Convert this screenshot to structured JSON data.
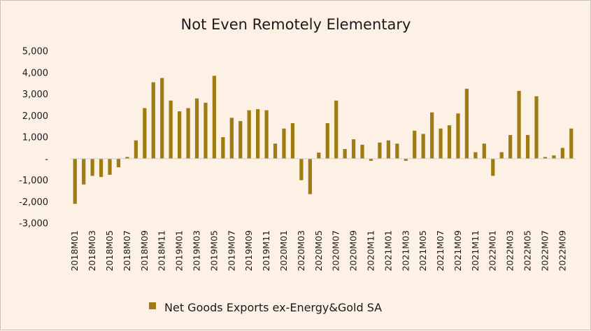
{
  "chart_data": {
    "type": "bar",
    "title": "Not Even Remotely Elementary",
    "xlabel": "",
    "ylabel": "",
    "ylim": [
      -3000,
      5000
    ],
    "yticks": [
      5000,
      4000,
      3000,
      2000,
      1000,
      0,
      -1000,
      -2000,
      -3000
    ],
    "ytick_labels": [
      "5,000",
      "4,000",
      "3,000",
      "2,000",
      "1,000",
      "-",
      "-1,000",
      "-2,000",
      "-3,000"
    ],
    "color": "#9c7c13",
    "grid": false,
    "legend_position": "bottom",
    "categories": [
      "2018M01",
      "2018M02",
      "2018M03",
      "2018M04",
      "2018M05",
      "2018M06",
      "2018M07",
      "2018M08",
      "2018M09",
      "2018M10",
      "2018M11",
      "2018M12",
      "2019M01",
      "2019M02",
      "2019M03",
      "2019M04",
      "2019M05",
      "2019M06",
      "2019M07",
      "2019M08",
      "2019M09",
      "2019M10",
      "2019M11",
      "2019M12",
      "2020M01",
      "2020M02",
      "2020M03",
      "2020M04",
      "2020M05",
      "2020M06",
      "2020M07",
      "2020M08",
      "2020M09",
      "2020M10",
      "2020M11",
      "2020M12",
      "2021M01",
      "2021M02",
      "2021M03",
      "2021M04",
      "2021M05",
      "2021M06",
      "2021M07",
      "2021M08",
      "2021M09",
      "2021M10",
      "2021M11",
      "2021M12",
      "2022M01",
      "2022M02",
      "2022M03",
      "2022M04",
      "2022M05",
      "2022M06",
      "2022M07",
      "2022M08",
      "2022M09",
      "2022M10"
    ],
    "tick_labels_shown": [
      "2018M01",
      "2018M03",
      "2018M05",
      "2018M07",
      "2018M09",
      "2018M11",
      "2019M01",
      "2019M03",
      "2019M05",
      "2019M07",
      "2019M09",
      "2019M11",
      "2020M01",
      "2020M03",
      "2020M05",
      "2020M07",
      "2020M09",
      "2020M11",
      "2021M01",
      "2021M03",
      "2021M05",
      "2021M07",
      "2021M09",
      "2021M11",
      "2022M01",
      "2022M03",
      "2022M05",
      "2022M07",
      "2022M09"
    ],
    "series": [
      {
        "name": "Net Goods Exports ex-Energy&Gold SA",
        "values": [
          -2100,
          -1200,
          -800,
          -850,
          -750,
          -400,
          80,
          850,
          2350,
          3550,
          3750,
          2700,
          2200,
          2350,
          2800,
          2600,
          3850,
          1000,
          1900,
          1750,
          2250,
          2300,
          2250,
          700,
          1400,
          1650,
          -1000,
          -1650,
          280,
          1650,
          2700,
          450,
          900,
          650,
          -100,
          750,
          850,
          700,
          -100,
          1300,
          1150,
          2150,
          1400,
          1550,
          2100,
          3250,
          300,
          700,
          -800,
          300,
          1100,
          3150,
          1100,
          2900,
          80,
          150,
          500,
          1400
        ]
      }
    ]
  }
}
